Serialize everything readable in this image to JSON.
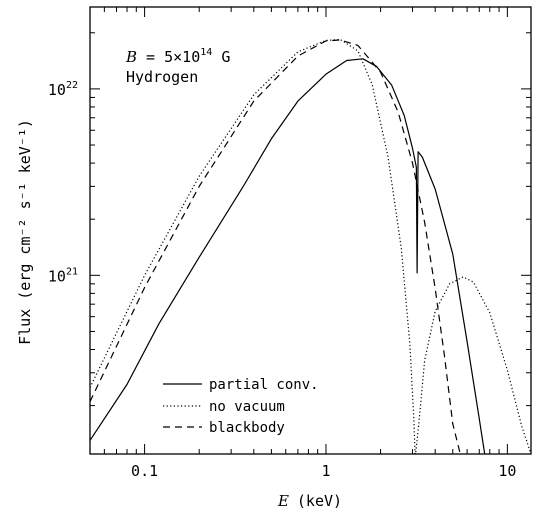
{
  "chart_data": {
    "type": "line",
    "xlabel_var": "E",
    "xlabel_unit": "(keV)",
    "ylabel": "Flux (erg cm⁻² s⁻¹ keV⁻¹)",
    "xscale": "log",
    "yscale": "log",
    "xlim": [
      0.05,
      13.5
    ],
    "ylim": [
      1.1e+20,
      2.75e+22
    ],
    "x_ticks": [
      {
        "value": 0.1,
        "label": "0.1"
      },
      {
        "value": 1,
        "label": "1"
      },
      {
        "value": 10,
        "label": "10"
      }
    ],
    "y_ticks": [
      {
        "value": 1e+21,
        "mantissa": "10",
        "exp": "21"
      },
      {
        "value": 1e+22,
        "mantissa": "10",
        "exp": "22"
      }
    ],
    "annotation": {
      "field_var": "B",
      "field_rest": " = 5×10",
      "field_exp": "14",
      "field_unit": " G",
      "composition": "Hydrogen"
    },
    "legend_position": "bottom-left",
    "series": [
      {
        "name": "partial conv.",
        "style": "solid",
        "x": [
          0.05,
          0.08,
          0.12,
          0.2,
          0.35,
          0.5,
          0.7,
          1.0,
          1.3,
          1.6,
          1.9,
          2.3,
          2.7,
          3.0,
          3.15,
          3.18,
          3.22,
          3.4,
          4.0,
          5.0,
          6.0,
          7.0,
          7.5
        ],
        "y": [
          1.3e+20,
          2.6e+20,
          5.5e+20,
          1.25e+21,
          3e+21,
          5.4e+21,
          8.6e+21,
          1.2e+22,
          1.42e+22,
          1.45e+22,
          1.32e+22,
          1.05e+22,
          7.2e+21,
          4.8e+21,
          3.8e+21,
          1.03e+21,
          4.6e+21,
          4.3e+21,
          2.9e+21,
          1.3e+21,
          4.4e+20,
          1.7e+20,
          1.1e+20
        ]
      },
      {
        "name": "no vacuum",
        "style": "dotted",
        "x": [
          0.05,
          0.1,
          0.2,
          0.4,
          0.7,
          1.0,
          1.2,
          1.5,
          1.8,
          2.2,
          2.6,
          2.9,
          3.05,
          3.1,
          3.12,
          3.25,
          3.5,
          4.0,
          4.8,
          5.7,
          6.5,
          8.0,
          10.0,
          12.0,
          13.5
        ],
        "y": [
          2.5e+20,
          1e+21,
          3.4e+21,
          9.3e+21,
          1.58e+22,
          1.82e+22,
          1.84e+22,
          1.6e+22,
          1.05e+22,
          4.3e+21,
          1.4e+21,
          4.3e+20,
          1.7e+20,
          1.1e+20,
          1.1e+20,
          1.6e+20,
          3.5e+20,
          6.4e+20,
          9e+20,
          9.8e+20,
          9.2e+20,
          6.3e+20,
          3.1e+20,
          1.55e+20,
          1.1e+20
        ]
      },
      {
        "name": "blackbody",
        "style": "dashed",
        "x": [
          0.05,
          0.1,
          0.2,
          0.4,
          0.7,
          1.0,
          1.2,
          1.5,
          2.0,
          2.5,
          3.0,
          3.5,
          4.0,
          4.5,
          5.0,
          5.5
        ],
        "y": [
          2.1e+20,
          8.6e+20,
          3e+21,
          8.6e+21,
          1.5e+22,
          1.81e+22,
          1.83e+22,
          1.71e+22,
          1.23e+22,
          7.5e+21,
          4e+21,
          1.92e+21,
          8.5e+20,
          3.7e+20,
          1.6e+20,
          1.1e+20
        ]
      }
    ]
  }
}
